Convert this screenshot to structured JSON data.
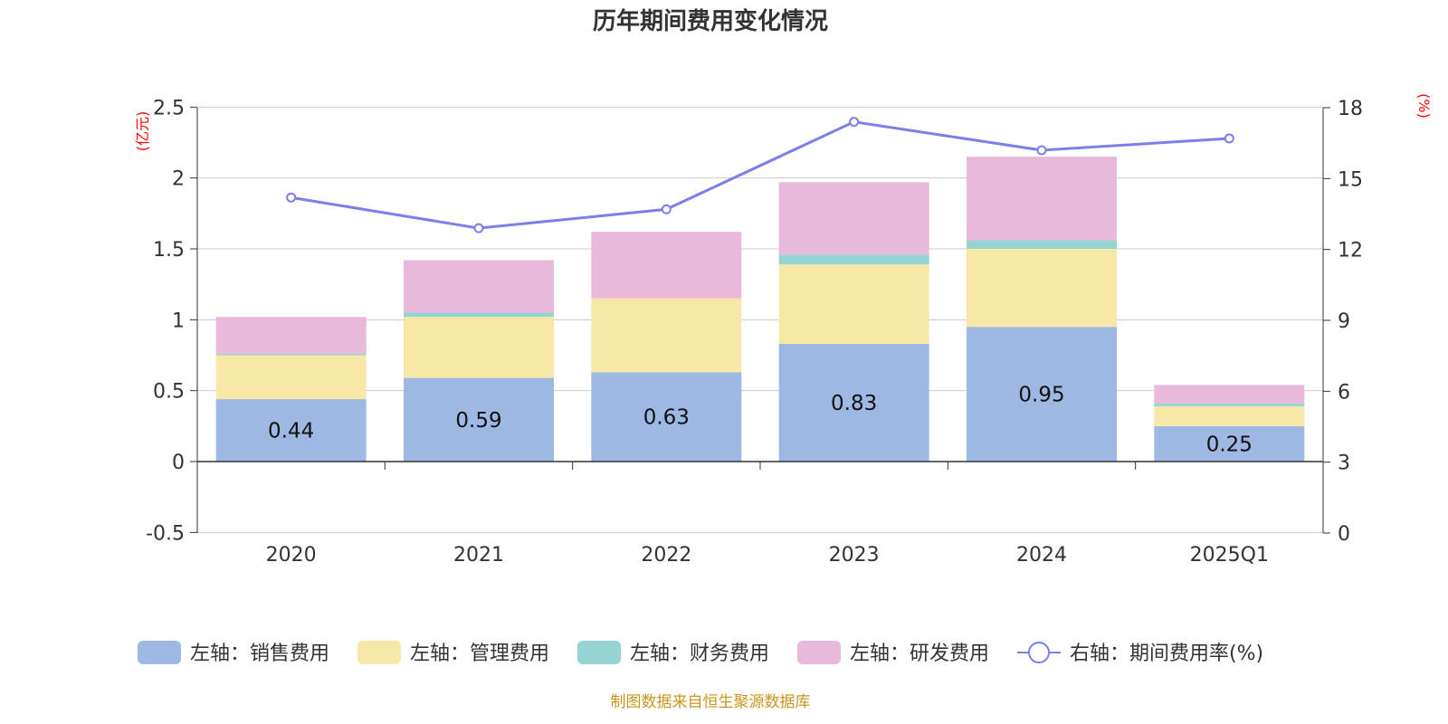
{
  "chart_data": {
    "type": "bar",
    "stacked": true,
    "title": "历年期间费用变化情况",
    "categories": [
      "2020",
      "2021",
      "2022",
      "2023",
      "2024",
      "2025Q1"
    ],
    "y_left": {
      "unit": "(亿元)",
      "range": [
        -0.5,
        2.5
      ],
      "ticks": [
        "-0.5",
        "0",
        "0.5",
        "1",
        "1.5",
        "2",
        "2.5"
      ]
    },
    "y_right": {
      "unit": "(%)",
      "range": [
        0,
        18
      ],
      "ticks": [
        "0",
        "3",
        "6",
        "9",
        "12",
        "15",
        "18"
      ]
    },
    "series": [
      {
        "name": "左轴：销售费用",
        "axis": "left",
        "color": "#9db8e2",
        "values": [
          0.44,
          0.59,
          0.63,
          0.83,
          0.95,
          0.25
        ],
        "labels": [
          "0.44",
          "0.59",
          "0.63",
          "0.83",
          "0.95",
          "0.25"
        ]
      },
      {
        "name": "左轴：管理费用",
        "axis": "left",
        "color": "#f8e8a8",
        "values": [
          0.31,
          0.43,
          0.52,
          0.56,
          0.55,
          0.14
        ]
      },
      {
        "name": "左轴：财务费用",
        "axis": "left",
        "color": "#96d3d3",
        "values": [
          0.01,
          0.03,
          0.0,
          0.07,
          0.06,
          0.02
        ]
      },
      {
        "name": "左轴：研发费用",
        "axis": "left",
        "color": "#e8b9da",
        "values": [
          0.26,
          0.37,
          0.47,
          0.51,
          0.59,
          0.13
        ]
      },
      {
        "name": "右轴：期间费用率(%)",
        "axis": "right",
        "type": "line",
        "color": "#7b7fe8",
        "values": [
          14.2,
          12.9,
          13.7,
          17.4,
          16.2,
          16.7
        ]
      }
    ],
    "grid": true,
    "legend_position": "bottom"
  },
  "source": "制图数据来自恒生聚源数据库"
}
